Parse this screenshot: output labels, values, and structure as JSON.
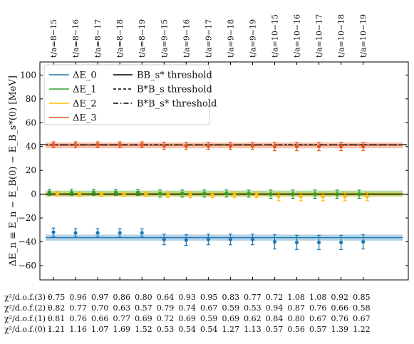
{
  "chart_data": {
    "type": "scatter",
    "ylabel": "ΔE_n ≡ E_n − E_B(0) − E_B_s*(0) [MeV]",
    "ylim": [
      -72,
      111
    ],
    "yticks": [
      -60,
      -40,
      -20,
      0,
      20,
      40,
      60,
      80,
      100
    ],
    "grid": false,
    "legend_position": "top-left",
    "categories": [
      "t/a=8−15",
      "t/a=8−16",
      "t/a=8−17",
      "t/a=8−18",
      "t/a=8−19",
      "t/a=9−15",
      "t/a=9−16",
      "t/a=9−17",
      "t/a=9−18",
      "t/a=9−19",
      "t/a=10−15",
      "t/a=10−16",
      "t/a=10−17",
      "t/a=10−18",
      "t/a=10−19"
    ],
    "legend": {
      "levels": [
        {
          "name": "ΔE_0",
          "color": "#1f77b4"
        },
        {
          "name": "ΔE_1",
          "color": "#2ca02c"
        },
        {
          "name": "ΔE_2",
          "color": "#ffbf00"
        },
        {
          "name": "ΔE_3",
          "color": "#e8561f"
        }
      ],
      "thresholds": [
        {
          "name": "BB_s* threshold",
          "style": "solid"
        },
        {
          "name": "B*B_s threshold",
          "style": "dashed"
        },
        {
          "name": "B*B_s* threshold",
          "style": "dashdot"
        }
      ]
    },
    "thresholds": [
      {
        "name": "BB_s* threshold",
        "value": 0,
        "style": "solid"
      },
      {
        "name": "B*B_s threshold",
        "value": 41.5,
        "style": "dashed"
      },
      {
        "name": "B*B_s* threshold",
        "value": 41.5,
        "style": "dashdot"
      }
    ],
    "bands": [
      {
        "level": "ΔE_0",
        "center": -36.5,
        "halfwidth": 2.5,
        "color": "#1f77b4"
      },
      {
        "level": "ΔE_1",
        "center": 0.5,
        "halfwidth": 2.5,
        "color": "#2ca02c"
      },
      {
        "level": "ΔE_2",
        "center": 0.0,
        "halfwidth": 2.0,
        "color": "#ffbf00"
      },
      {
        "level": "ΔE_3",
        "center": 41.0,
        "halfwidth": 2.5,
        "color": "#e8561f"
      }
    ],
    "series": [
      {
        "name": "ΔE_0",
        "color": "#1f77b4",
        "offset": 0,
        "values": [
          -32,
          -32.5,
          -32.5,
          -32.5,
          -32.5,
          -38,
          -38.5,
          -38,
          -38,
          -38,
          -40,
          -40.5,
          -40.5,
          -40.5,
          -40
        ],
        "errors": [
          3.5,
          3.5,
          3.5,
          3.5,
          3.5,
          4.5,
          4.5,
          4.5,
          4.5,
          4.5,
          6,
          6,
          6,
          6,
          6
        ]
      },
      {
        "name": "ΔE_1",
        "color": "#2ca02c",
        "offset": -0.18,
        "values": [
          1.5,
          1.5,
          1.5,
          1.5,
          1.5,
          0.5,
          0.5,
          0.5,
          0.5,
          0.5,
          0,
          0,
          0,
          0,
          0
        ],
        "errors": [
          2.5,
          2.5,
          2.5,
          2.5,
          2.5,
          3,
          3,
          3,
          3,
          3,
          3.5,
          3.5,
          3.5,
          3.5,
          3.5
        ]
      },
      {
        "name": "ΔE_2",
        "color": "#ffbf00",
        "offset": 0.18,
        "values": [
          0.5,
          0,
          0,
          0,
          0,
          -0.5,
          -0.5,
          -0.5,
          -0.5,
          -0.5,
          -2,
          -2,
          -2,
          -2,
          -2
        ],
        "errors": [
          2,
          2,
          2,
          2,
          2,
          2.5,
          2.5,
          2.5,
          2.5,
          2.5,
          3.5,
          3.5,
          3.5,
          3.5,
          3.5
        ]
      },
      {
        "name": "ΔE_3",
        "color": "#e8561f",
        "offset": 0,
        "values": [
          41.5,
          41.5,
          41.5,
          41.5,
          41.5,
          40.5,
          40.5,
          40.5,
          40.5,
          40.5,
          40,
          40,
          40,
          40,
          40
        ],
        "errors": [
          2.5,
          2.5,
          2.5,
          2.5,
          2.5,
          3,
          3,
          3,
          3,
          3,
          3.5,
          3.5,
          3.5,
          3.5,
          3.5
        ]
      }
    ],
    "chi2_table": [
      {
        "label": "χ²/d.o.f.(3) :",
        "values": [
          "0.75",
          "0.96",
          "0.97",
          "0.86",
          "0.80",
          "0.64",
          "0.93",
          "0.95",
          "0.83",
          "0.77",
          "0.72",
          "1.08",
          "1.08",
          "0.92",
          "0.85"
        ]
      },
      {
        "label": "χ²/d.o.f.(2) :",
        "values": [
          "0.82",
          "0.77",
          "0.70",
          "0.63",
          "0.57",
          "0.79",
          "0.74",
          "0.67",
          "0.59",
          "0.53",
          "0.94",
          "0.87",
          "0.76",
          "0.66",
          "0.58"
        ]
      },
      {
        "label": "χ²/d.o.f.(1) :",
        "values": [
          "0.81",
          "0.76",
          "0.66",
          "0.77",
          "0.69",
          "0.72",
          "0.69",
          "0.59",
          "0.69",
          "0.62",
          "0.84",
          "0.80",
          "0.67",
          "0.76",
          "0.67"
        ]
      },
      {
        "label": "χ²/d.o.f.(0) :",
        "values": [
          "1.21",
          "1.16",
          "1.07",
          "1.69",
          "1.52",
          "0.53",
          "0.54",
          "0.54",
          "1.27",
          "1.13",
          "0.57",
          "0.56",
          "0.57",
          "1.39",
          "1.22"
        ]
      }
    ]
  }
}
